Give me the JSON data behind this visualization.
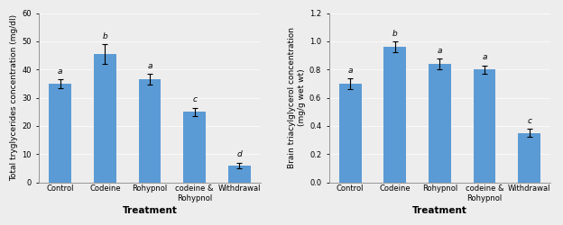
{
  "left_chart": {
    "categories": [
      "Control",
      "Codeine",
      "Rohypnol",
      "codeine &\nRohypnol",
      "Withdrawal"
    ],
    "values": [
      35.0,
      45.5,
      36.5,
      25.0,
      6.0
    ],
    "errors": [
      1.5,
      3.5,
      2.0,
      1.5,
      1.0
    ],
    "letters": [
      "a",
      "b",
      "a",
      "c",
      "d"
    ],
    "ylabel": "Total tryglycerides concentration (mg/dl)",
    "xlabel": "Treatment",
    "ylim": [
      0,
      60
    ],
    "yticks": [
      0,
      10,
      20,
      30,
      40,
      50,
      60
    ]
  },
  "right_chart": {
    "categories": [
      "Control",
      "Codeine",
      "Rohypnol",
      "codeine &\nRohypnol",
      "Withdrawal"
    ],
    "values": [
      0.7,
      0.96,
      0.84,
      0.8,
      0.35
    ],
    "errors": [
      0.04,
      0.04,
      0.04,
      0.03,
      0.03
    ],
    "letters": [
      "a",
      "b",
      "a",
      "a",
      "c"
    ],
    "ylabel": "Brain triacylglycerol concentration\n(mg/g wet wt)",
    "xlabel": "Treatment",
    "ylim": [
      0,
      1.2
    ],
    "yticks": [
      0,
      0.2,
      0.4,
      0.6,
      0.8,
      1.0,
      1.2
    ]
  },
  "bar_color": "#5B9BD5",
  "bar_width": 0.5,
  "bar_edgecolor": "none",
  "error_color": "black",
  "letter_fontsize": 6.5,
  "tick_fontsize": 6,
  "label_fontsize": 7.5,
  "ylabel_fontsize": 6.5,
  "bg_color": "#EDEDED"
}
